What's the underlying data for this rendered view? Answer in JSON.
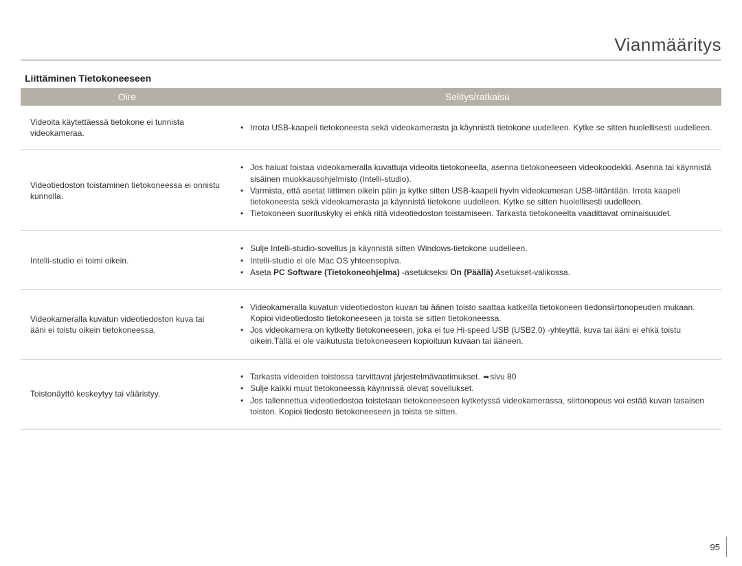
{
  "page": {
    "title": "Vianmääritys",
    "number": "95"
  },
  "section": {
    "heading": "Liittäminen Tietokoneeseen"
  },
  "table": {
    "headers": {
      "col1": "Oire",
      "col2": "Selitys/ratkaisu"
    },
    "rows": [
      {
        "symptom": "Videoita käytettäessä tietokone ei tunnista videokameraa.",
        "items": [
          "Irrota USB-kaapeli tietokoneesta sekä videokamerasta ja käynnistä tietokone uudelleen. Kytke se sitten huolellisesti uudelleen."
        ]
      },
      {
        "symptom": "Videotiedoston toistaminen tietokoneessa ei onnistu kunnolla.",
        "items": [
          "Jos haluat toistaa videokameralla kuvattuja videoita tietokoneella, asenna tietokoneeseen videokoodekki. Asenna tai käynnistä sisäinen muokkausohjelmisto (Intelli-studio).",
          "Varmista, että asetat liittimen oikein päin ja kytke sitten USB-kaapeli hyvin videokameran USB-liitäntään. Irrota kaapeli tietokoneesta sekä videokamerasta ja käynnistä tietokone uudelleen. Kytke se sitten huolellisesti uudelleen.",
          "Tietokoneen suorituskyky ei ehkä riitä videotiedoston toistamiseen. Tarkasta tietokoneelta vaadittavat ominaisuudet."
        ]
      },
      {
        "symptom": "Intelli-studio ei toimi oikein.",
        "items": [
          "Sulje Intelli-studio-sovellus ja käynnistä sitten Windows-tietokone uudelleen.",
          "Intelli-studio ei ole Mac OS yhteensopiva."
        ],
        "last_html": "Aseta <b>PC Software (Tietokoneohjelma)</b> -asetukseksi <b>On (Päällä)</b> Asetukset-valikossa."
      },
      {
        "symptom": "Videokameralla kuvatun videotiedoston kuva tai ääni ei toistu oikein tietokoneessa.",
        "items": [
          "Videokameralla kuvatun videotiedoston kuvan tai äänen toisto saattaa katkeilla tietokoneen tiedonsiirtonopeuden mukaan. Kopioi videotiedosto tietokoneeseen ja toista se sitten tietokoneessa.",
          "Jos videokamera on kytketty tietokoneeseen, joka ei tue Hi-speed USB (USB2.0) -yhteyttä, kuva tai ääni ei ehkä toistu oikein.Tällä ei ole vaikutusta tietokoneeseen kopioituun kuvaan tai ääneen."
        ]
      },
      {
        "symptom": "Toistonäyttö keskeytyy tai vääristyy.",
        "first_html": "Tarkasta videoiden toistossa tarvittavat järjestelmävaatimukset. <span class=\"arrow-icon\">➥</span>sivu 80",
        "items": [
          "Sulje kaikki muut tietokoneessa käynnissä olevat sovellukset.",
          "Jos tallennettua videotiedostoa toistetaan tietokoneeseen kytketyssä videokamerassa, siirtonopeus voi estää kuvan tasaisen toiston. Kopioi tiedosto tietokoneeseen ja toista se sitten."
        ]
      }
    ]
  }
}
